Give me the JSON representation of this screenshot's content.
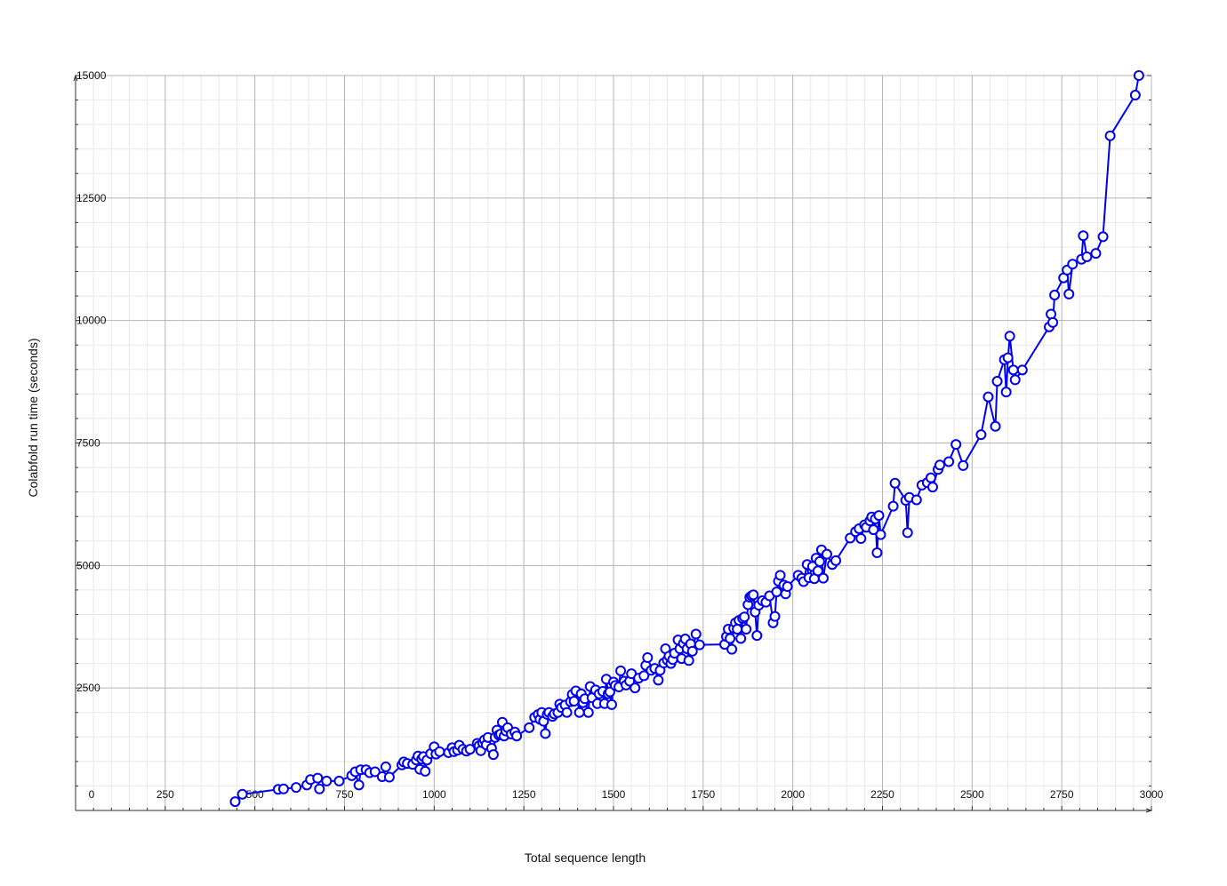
{
  "chart_data": {
    "type": "line",
    "title": "",
    "xlabel": "Total sequence length",
    "ylabel": "Colabfold run time (seconds)",
    "xlim": [
      0,
      3000
    ],
    "ylim": [
      0,
      15000
    ],
    "x_ticks": [
      0,
      250,
      500,
      750,
      1000,
      1250,
      1500,
      1750,
      2000,
      2250,
      2500,
      2750,
      3000
    ],
    "x_tick_labels": [
      "0",
      "250",
      "500",
      "750",
      "1000",
      "1250",
      "1500",
      "1750",
      "2000",
      "2250",
      "2500",
      "2750",
      "3000"
    ],
    "y_ticks": [
      2500,
      5000,
      7500,
      10000,
      12500,
      15000
    ],
    "y_tick_labels": [
      "2500",
      "5000",
      "7500",
      "10000",
      "12500",
      "15000"
    ],
    "grid": true,
    "legend": "none",
    "colors": {
      "line": "#0000ee",
      "marker_fill": "#ffffff",
      "grid_major": "#b4b4b4",
      "grid_minor": "#e8e8e8"
    },
    "series": [
      {
        "points": [
          [
            445,
            180
          ],
          [
            465,
            330
          ],
          [
            565,
            430
          ],
          [
            580,
            440
          ],
          [
            615,
            470
          ],
          [
            645,
            520
          ],
          [
            655,
            630
          ],
          [
            675,
            660
          ],
          [
            680,
            440
          ],
          [
            700,
            600
          ],
          [
            735,
            600
          ],
          [
            770,
            710
          ],
          [
            780,
            790
          ],
          [
            790,
            520
          ],
          [
            795,
            830
          ],
          [
            810,
            830
          ],
          [
            820,
            770
          ],
          [
            835,
            790
          ],
          [
            855,
            690
          ],
          [
            865,
            890
          ],
          [
            875,
            680
          ],
          [
            910,
            930
          ],
          [
            915,
            990
          ],
          [
            925,
            960
          ],
          [
            940,
            940
          ],
          [
            950,
            1030
          ],
          [
            955,
            1110
          ],
          [
            960,
            840
          ],
          [
            965,
            1050
          ],
          [
            970,
            1100
          ],
          [
            975,
            800
          ],
          [
            980,
            1030
          ],
          [
            990,
            1160
          ],
          [
            1000,
            1300
          ],
          [
            1005,
            1150
          ],
          [
            1015,
            1200
          ],
          [
            1040,
            1180
          ],
          [
            1050,
            1280
          ],
          [
            1055,
            1200
          ],
          [
            1065,
            1230
          ],
          [
            1070,
            1330
          ],
          [
            1080,
            1250
          ],
          [
            1090,
            1210
          ],
          [
            1100,
            1250
          ],
          [
            1120,
            1370
          ],
          [
            1125,
            1320
          ],
          [
            1130,
            1220
          ],
          [
            1135,
            1380
          ],
          [
            1140,
            1440
          ],
          [
            1145,
            1340
          ],
          [
            1150,
            1490
          ],
          [
            1160,
            1270
          ],
          [
            1165,
            1140
          ],
          [
            1170,
            1490
          ],
          [
            1175,
            1640
          ],
          [
            1180,
            1540
          ],
          [
            1185,
            1560
          ],
          [
            1190,
            1800
          ],
          [
            1195,
            1520
          ],
          [
            1200,
            1620
          ],
          [
            1205,
            1690
          ],
          [
            1215,
            1560
          ],
          [
            1225,
            1600
          ],
          [
            1230,
            1520
          ],
          [
            1265,
            1690
          ],
          [
            1280,
            1900
          ],
          [
            1290,
            1960
          ],
          [
            1295,
            1860
          ],
          [
            1300,
            2000
          ],
          [
            1305,
            1820
          ],
          [
            1310,
            1570
          ],
          [
            1315,
            1960
          ],
          [
            1320,
            2000
          ],
          [
            1330,
            1920
          ],
          [
            1335,
            1970
          ],
          [
            1345,
            2000
          ],
          [
            1350,
            2170
          ],
          [
            1355,
            2100
          ],
          [
            1365,
            2150
          ],
          [
            1370,
            2000
          ],
          [
            1380,
            2220
          ],
          [
            1385,
            2370
          ],
          [
            1390,
            2230
          ],
          [
            1395,
            2440
          ],
          [
            1405,
            2000
          ],
          [
            1410,
            2380
          ],
          [
            1415,
            2200
          ],
          [
            1420,
            2280
          ],
          [
            1430,
            2000
          ],
          [
            1435,
            2530
          ],
          [
            1440,
            2300
          ],
          [
            1450,
            2460
          ],
          [
            1455,
            2180
          ],
          [
            1460,
            2380
          ],
          [
            1470,
            2430
          ],
          [
            1475,
            2180
          ],
          [
            1480,
            2680
          ],
          [
            1485,
            2380
          ],
          [
            1490,
            2420
          ],
          [
            1495,
            2160
          ],
          [
            1500,
            2620
          ],
          [
            1505,
            2550
          ],
          [
            1515,
            2520
          ],
          [
            1520,
            2850
          ],
          [
            1530,
            2640
          ],
          [
            1535,
            2560
          ],
          [
            1545,
            2640
          ],
          [
            1550,
            2790
          ],
          [
            1560,
            2500
          ],
          [
            1570,
            2700
          ],
          [
            1585,
            2750
          ],
          [
            1590,
            2960
          ],
          [
            1595,
            3120
          ],
          [
            1605,
            2860
          ],
          [
            1615,
            2900
          ],
          [
            1625,
            2660
          ],
          [
            1630,
            2860
          ],
          [
            1640,
            3010
          ],
          [
            1645,
            3300
          ],
          [
            1650,
            3070
          ],
          [
            1655,
            3150
          ],
          [
            1660,
            3000
          ],
          [
            1665,
            3080
          ],
          [
            1670,
            3210
          ],
          [
            1680,
            3480
          ],
          [
            1685,
            3300
          ],
          [
            1690,
            3100
          ],
          [
            1695,
            3410
          ],
          [
            1700,
            3500
          ],
          [
            1705,
            3300
          ],
          [
            1710,
            3060
          ],
          [
            1715,
            3400
          ],
          [
            1720,
            3250
          ],
          [
            1730,
            3600
          ],
          [
            1740,
            3380
          ],
          [
            1810,
            3390
          ],
          [
            1815,
            3550
          ],
          [
            1820,
            3700
          ],
          [
            1825,
            3510
          ],
          [
            1830,
            3290
          ],
          [
            1835,
            3720
          ],
          [
            1840,
            3830
          ],
          [
            1845,
            3700
          ],
          [
            1850,
            3880
          ],
          [
            1855,
            3510
          ],
          [
            1860,
            3920
          ],
          [
            1865,
            3950
          ],
          [
            1870,
            3700
          ],
          [
            1875,
            4200
          ],
          [
            1880,
            4350
          ],
          [
            1885,
            4380
          ],
          [
            1890,
            4400
          ],
          [
            1895,
            4050
          ],
          [
            1900,
            3570
          ],
          [
            1905,
            4190
          ],
          [
            1915,
            4280
          ],
          [
            1925,
            4250
          ],
          [
            1935,
            4380
          ],
          [
            1945,
            3830
          ],
          [
            1950,
            3960
          ],
          [
            1955,
            4460
          ],
          [
            1960,
            4680
          ],
          [
            1965,
            4800
          ],
          [
            1975,
            4600
          ],
          [
            1980,
            4420
          ],
          [
            1985,
            4570
          ],
          [
            2015,
            4800
          ],
          [
            2025,
            4740
          ],
          [
            2030,
            4670
          ],
          [
            2040,
            5020
          ],
          [
            2045,
            4750
          ],
          [
            2055,
            4980
          ],
          [
            2060,
            4730
          ],
          [
            2065,
            5150
          ],
          [
            2070,
            4890
          ],
          [
            2075,
            5080
          ],
          [
            2080,
            5320
          ],
          [
            2085,
            4740
          ],
          [
            2095,
            5230
          ],
          [
            2110,
            5020
          ],
          [
            2120,
            5100
          ],
          [
            2160,
            5560
          ],
          [
            2175,
            5690
          ],
          [
            2185,
            5750
          ],
          [
            2190,
            5550
          ],
          [
            2200,
            5830
          ],
          [
            2205,
            5780
          ],
          [
            2215,
            5910
          ],
          [
            2220,
            5990
          ],
          [
            2225,
            5730
          ],
          [
            2230,
            5950
          ],
          [
            2235,
            5260
          ],
          [
            2240,
            6020
          ],
          [
            2245,
            5630
          ],
          [
            2280,
            6210
          ],
          [
            2285,
            6680
          ],
          [
            2315,
            6330
          ],
          [
            2320,
            5670
          ],
          [
            2325,
            6390
          ],
          [
            2345,
            6340
          ],
          [
            2360,
            6640
          ],
          [
            2375,
            6690
          ],
          [
            2385,
            6790
          ],
          [
            2390,
            6600
          ],
          [
            2405,
            6960
          ],
          [
            2410,
            7050
          ],
          [
            2435,
            7120
          ],
          [
            2455,
            7470
          ],
          [
            2475,
            7040
          ],
          [
            2525,
            7670
          ],
          [
            2545,
            8440
          ],
          [
            2565,
            7840
          ],
          [
            2570,
            8760
          ],
          [
            2590,
            9200
          ],
          [
            2595,
            8540
          ],
          [
            2600,
            9240
          ],
          [
            2605,
            9680
          ],
          [
            2615,
            8990
          ],
          [
            2620,
            8790
          ],
          [
            2640,
            8990
          ],
          [
            2715,
            9870
          ],
          [
            2720,
            10130
          ],
          [
            2725,
            9960
          ],
          [
            2730,
            10520
          ],
          [
            2755,
            10870
          ],
          [
            2765,
            11030
          ],
          [
            2770,
            10540
          ],
          [
            2780,
            11150
          ],
          [
            2805,
            11250
          ],
          [
            2810,
            11730
          ],
          [
            2820,
            11300
          ],
          [
            2845,
            11370
          ],
          [
            2865,
            11710
          ],
          [
            2885,
            13770
          ],
          [
            2955,
            14600
          ],
          [
            2965,
            15000
          ]
        ]
      }
    ]
  }
}
